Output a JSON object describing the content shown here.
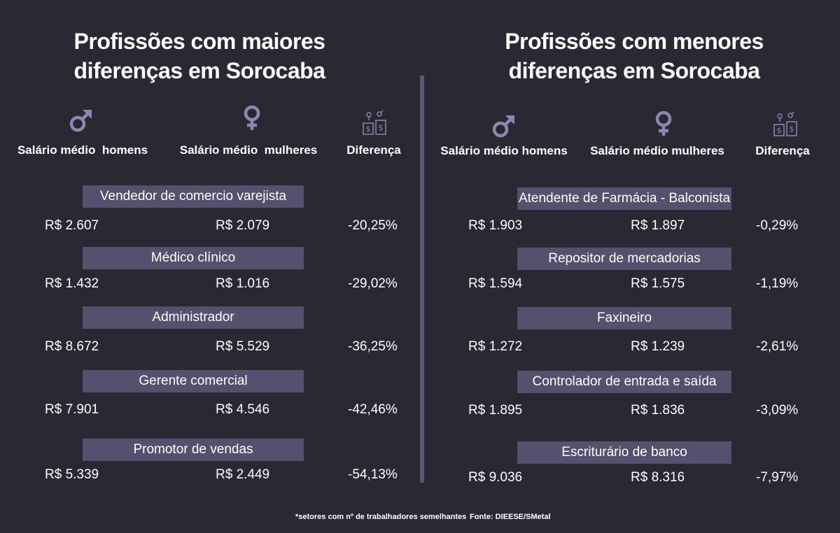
{
  "chart_data": [
    {
      "type": "table",
      "title": "Profissões com maiores diferenças em Sorocaba",
      "columns": [
        "Salário médio  homens",
        "Salário médio  mulheres",
        "Diferença"
      ],
      "rows": [
        {
          "profession": "Vendedor de comercio varejista",
          "men": "R$ 2.607",
          "women": "R$ 2.079",
          "difference": "-20,25%"
        },
        {
          "profession": "Médico clínico",
          "men": "R$ 1.432",
          "women": "R$ 1.016",
          "difference": "-29,02%"
        },
        {
          "profession": "Administrador",
          "men": "R$ 8.672",
          "women": "R$ 5.529",
          "difference": "-36,25%"
        },
        {
          "profession": "Gerente comercial",
          "men": "R$ 7.901",
          "women": "R$ 4.546",
          "difference": "-42,46%"
        },
        {
          "profession": "Promotor de vendas",
          "men": "R$ 5.339",
          "women": "R$ 2.449",
          "difference": "-54,13%"
        }
      ]
    },
    {
      "type": "table",
      "title": "Profissões com menores diferenças em Sorocaba",
      "columns": [
        "Salário médio homens",
        "Salário médio mulheres",
        "Diferença"
      ],
      "rows": [
        {
          "profession": "Atendente de Farmácia - Balconista",
          "men": "R$ 1.903",
          "women": "R$ 1.897",
          "difference": "-0,29%"
        },
        {
          "profession": "Repositor de mercadorias",
          "men": "R$ 1.594",
          "women": "R$ 1.575",
          "difference": "-1,19%"
        },
        {
          "profession": "Faxineiro",
          "men": "R$ 1.272",
          "women": "R$ 1.239",
          "difference": "-2,61%"
        },
        {
          "profession": "Controlador de entrada e saída",
          "men": "R$ 1.895",
          "women": "R$ 1.836",
          "difference": "-3,09%"
        },
        {
          "profession": "Escriturário de banco",
          "men": "R$ 9.036",
          "women": "R$ 8.316",
          "difference": "-7,97%"
        }
      ]
    }
  ],
  "icons": {
    "men": "male-symbol-icon",
    "women": "female-symbol-icon",
    "difference": "money-gender-icon"
  },
  "colors": {
    "background": "#2a2833",
    "bar": "#55506d",
    "icon": "#8d87b2",
    "divider": "#5c5674",
    "text": "#ffffff"
  },
  "footer": {
    "note": "*setores com nº de trabalhadores semelhantes",
    "source": "Fonte: DIEESE/SMetal"
  }
}
